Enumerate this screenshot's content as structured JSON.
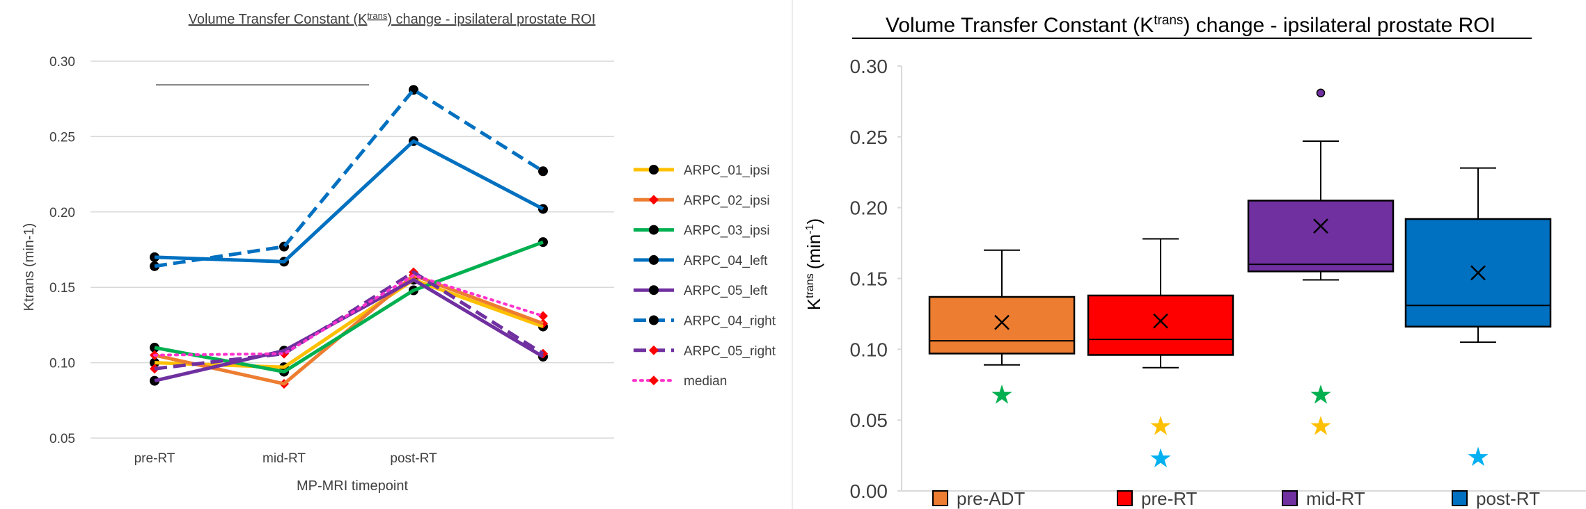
{
  "chart_data": [
    {
      "type": "line",
      "title_main": "Volume Transfer Constant (K",
      "title_sup": "trans",
      "title_rest": ") change - ipsilateral prostate ROI",
      "xlabel": "MP-MRI timepoint",
      "ylabel": "Ktrans (min-1)",
      "categories": [
        "pre-RT",
        "mid-RT",
        "post-RT",
        ""
      ],
      "ylim": [
        0.05,
        0.3
      ],
      "yticks": [
        "0.05",
        "0.10",
        "0.15",
        "0.20",
        "0.25",
        "0.30"
      ],
      "grid": true,
      "legend_position": "right",
      "series": [
        {
          "name": "ARPC_01_ipsi",
          "values": [
            0.1,
            0.097,
            0.155,
            0.124
          ],
          "color": "#ffc000",
          "dash": "solid",
          "marker": "circle",
          "marker_color": "#000000"
        },
        {
          "name": "ARPC_02_ipsi",
          "values": [
            0.105,
            0.086,
            0.158,
            0.126
          ],
          "color": "#ed7d31",
          "dash": "solid",
          "marker": "diamond",
          "marker_color": "#ff0000"
        },
        {
          "name": "ARPC_03_ipsi",
          "values": [
            0.11,
            0.094,
            0.148,
            0.18
          ],
          "color": "#00b050",
          "dash": "solid",
          "marker": "circle",
          "marker_color": "#000000"
        },
        {
          "name": "ARPC_04_left",
          "values": [
            0.17,
            0.167,
            0.247,
            0.202
          ],
          "color": "#0070c0",
          "dash": "solid",
          "marker": "circle",
          "marker_color": "#000000"
        },
        {
          "name": "ARPC_05_left",
          "values": [
            0.088,
            0.108,
            0.155,
            0.104
          ],
          "color": "#7030a0",
          "dash": "solid",
          "marker": "circle",
          "marker_color": "#000000"
        },
        {
          "name": "ARPC_04_right",
          "values": [
            0.164,
            0.177,
            0.281,
            0.227
          ],
          "color": "#0070c0",
          "dash": "dash",
          "marker": "circle",
          "marker_color": "#000000"
        },
        {
          "name": "ARPC_05_right",
          "values": [
            0.096,
            0.106,
            0.16,
            0.106
          ],
          "color": "#7030a0",
          "dash": "dash",
          "marker": "diamond",
          "marker_color": "#ff0000"
        },
        {
          "name": "median",
          "values": [
            0.105,
            0.106,
            0.158,
            0.131
          ],
          "color": "#ff33cc",
          "dash": "dot",
          "marker": "diamond",
          "marker_color": "#ff0000"
        }
      ]
    },
    {
      "type": "box",
      "title_main": "Volume Transfer Constant (K",
      "title_sup": "trans",
      "title_rest": ") change - ipsilateral prostate ROI",
      "ylabel_main": "K",
      "ylabel_sup": "trans",
      "ylabel_rest": "(min",
      "ylabel_sup2": "-1",
      "ylabel_end": ")",
      "ylim": [
        0.0,
        0.3
      ],
      "yticks": [
        "0.00",
        "0.05",
        "0.10",
        "0.15",
        "0.20",
        "0.25",
        "0.30"
      ],
      "legend_position": "bottom",
      "boxes": [
        {
          "name": "pre-ADT",
          "color": "#ed7d31",
          "min": 0.089,
          "q1": 0.097,
          "median": 0.106,
          "q3": 0.137,
          "max": 0.17,
          "mean": 0.119,
          "outliers": []
        },
        {
          "name": "pre-RT",
          "color": "#ff0000",
          "min": 0.087,
          "q1": 0.096,
          "median": 0.107,
          "q3": 0.138,
          "max": 0.178,
          "mean": 0.12,
          "outliers": []
        },
        {
          "name": "mid-RT",
          "color": "#7030a0",
          "min": 0.149,
          "q1": 0.155,
          "median": 0.16,
          "q3": 0.205,
          "max": 0.247,
          "mean": 0.187,
          "outliers": [
            0.281
          ]
        },
        {
          "name": "post-RT",
          "color": "#0070c0",
          "min": 0.105,
          "q1": 0.116,
          "median": 0.131,
          "q3": 0.192,
          "max": 0.228,
          "mean": 0.154,
          "outliers": []
        }
      ],
      "star_glyph": "★",
      "stars": [
        {
          "box": 0,
          "value": 0.068,
          "color": "#00b050"
        },
        {
          "box": 1,
          "value": 0.046,
          "color": "#ffc000"
        },
        {
          "box": 1,
          "value": 0.023,
          "color": "#00b0f0"
        },
        {
          "box": 2,
          "value": 0.068,
          "color": "#00b050"
        },
        {
          "box": 2,
          "value": 0.046,
          "color": "#ffc000"
        },
        {
          "box": 3,
          "value": 0.024,
          "color": "#00b0f0"
        }
      ]
    }
  ]
}
